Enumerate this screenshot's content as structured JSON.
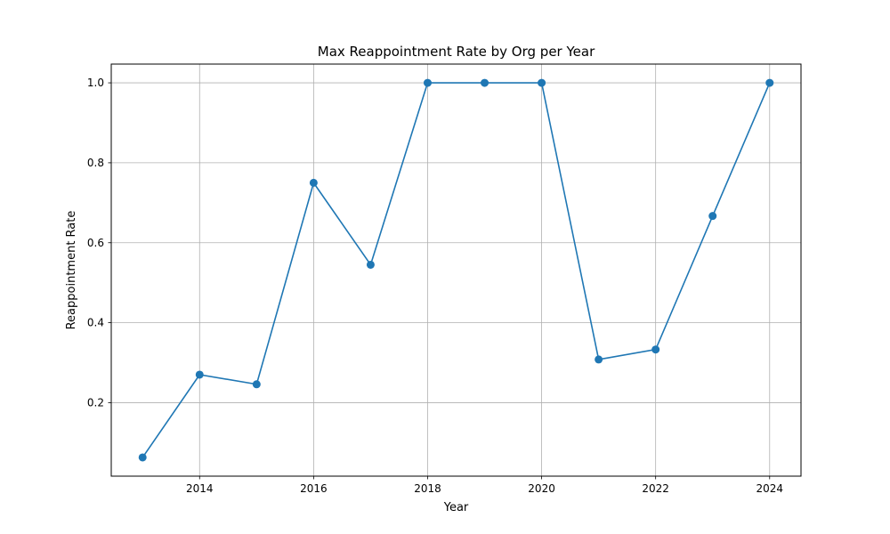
{
  "chart_data": {
    "type": "line",
    "title": "Max Reappointment Rate by Org per Year",
    "xlabel": "Year",
    "ylabel": "Reappointment Rate",
    "x": [
      2013,
      2014,
      2015,
      2016,
      2017,
      2018,
      2019,
      2020,
      2021,
      2022,
      2023,
      2024
    ],
    "series": [
      {
        "values": [
          0.063,
          0.27,
          0.246,
          0.75,
          0.545,
          1.0,
          1.0,
          1.0,
          0.308,
          0.333,
          0.667,
          1.0
        ],
        "color": "#1f77b4",
        "marker": "circle"
      }
    ],
    "xticks": [
      "2014",
      "2016",
      "2018",
      "2020",
      "2022",
      "2024"
    ],
    "yticks": [
      "0.2",
      "0.4",
      "0.6",
      "0.8",
      "1.0"
    ],
    "xlim": [
      2012.45,
      2024.55
    ],
    "ylim": [
      0.0162,
      1.0469
    ],
    "grid": true,
    "axis_color": "#000000",
    "grid_color": "#b0b0b0"
  }
}
